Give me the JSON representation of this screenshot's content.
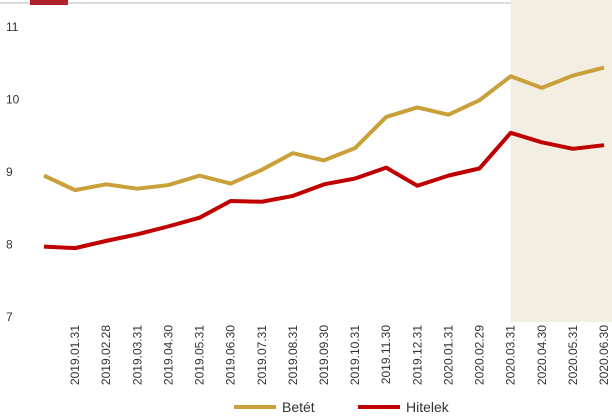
{
  "chart_data": {
    "type": "line",
    "categories": [
      null,
      "2019.01.31",
      "2019.02.28",
      "2019.03.31",
      "2019.04.30",
      "2019.05.31",
      "2019.06.30",
      "2019.07.31",
      "2019.08.31",
      "2019.09.30",
      "2019.10.31",
      "2019.11.30",
      "2019.12.31",
      "2020.01.31",
      "2020.02.29",
      "2020.03.31",
      "2020.04.30",
      "2020.05.31",
      "2020.06.30"
    ],
    "series": [
      {
        "name": "Betét",
        "color": "#c9a03a",
        "values": [
          8.95,
          8.75,
          8.83,
          8.77,
          8.82,
          8.95,
          8.84,
          9.03,
          9.26,
          9.16,
          9.33,
          9.76,
          9.89,
          9.79,
          9.99,
          10.32,
          10.16,
          10.33,
          10.44
        ]
      },
      {
        "name": "Hitelek",
        "color": "#c00000",
        "values": [
          7.97,
          7.95,
          8.05,
          8.14,
          8.25,
          8.37,
          8.6,
          8.59,
          8.67,
          8.83,
          8.91,
          9.06,
          8.81,
          8.95,
          9.05,
          9.54,
          9.41,
          9.32,
          9.37
        ]
      }
    ],
    "highlight_start": "2020.03.31",
    "highlight_color": "#f3eee2",
    "ylim": [
      7,
      11
    ],
    "yticks": [
      7,
      8,
      9,
      10,
      11
    ],
    "grid": false,
    "legend": "bottom"
  }
}
